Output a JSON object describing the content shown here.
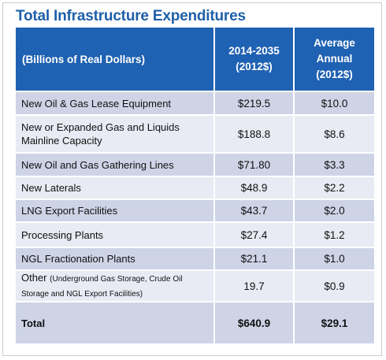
{
  "title": "Total Infrastructure Expenditures",
  "table": {
    "header": {
      "label": "(Billions of Real Dollars)",
      "col2_line1": "2014-2035",
      "col2_line2": "(2012$)",
      "col3_line1": "Average Annual",
      "col3_line2": "(2012$)"
    },
    "rows": [
      {
        "label": "New Oil & Gas Lease Equipment",
        "total": "$219.5",
        "annual": "$10.0"
      },
      {
        "label": "New or Expanded Gas and Liquids Mainline Capacity",
        "total": "$188.8",
        "annual": "$8.6"
      },
      {
        "label": "New Oil and Gas Gathering Lines",
        "total": "$71.80",
        "annual": "$3.3"
      },
      {
        "label": "New Laterals",
        "total": "$48.9",
        "annual": "$2.2"
      },
      {
        "label": "LNG Export Facilities",
        "total": "$43.7",
        "annual": "$2.0"
      },
      {
        "label": "Processing Plants",
        "total": "$27.4",
        "annual": "$1.2"
      },
      {
        "label": "NGL Fractionation Plants",
        "total": "$21.1",
        "annual": "$1.0"
      },
      {
        "label": "Other",
        "note": "(Underground Gas Storage, Crude Oil Storage and NGL Export Facilities)",
        "total": "19.7",
        "annual": "$0.9"
      }
    ],
    "total_row": {
      "label": "Total",
      "total": "$640.9",
      "annual": "$29.1"
    }
  },
  "colors": {
    "title": "#1f5fa8",
    "header_bg": "#1f61b2",
    "row_dark": "#ced4e6",
    "row_light": "#e8ebf4"
  }
}
